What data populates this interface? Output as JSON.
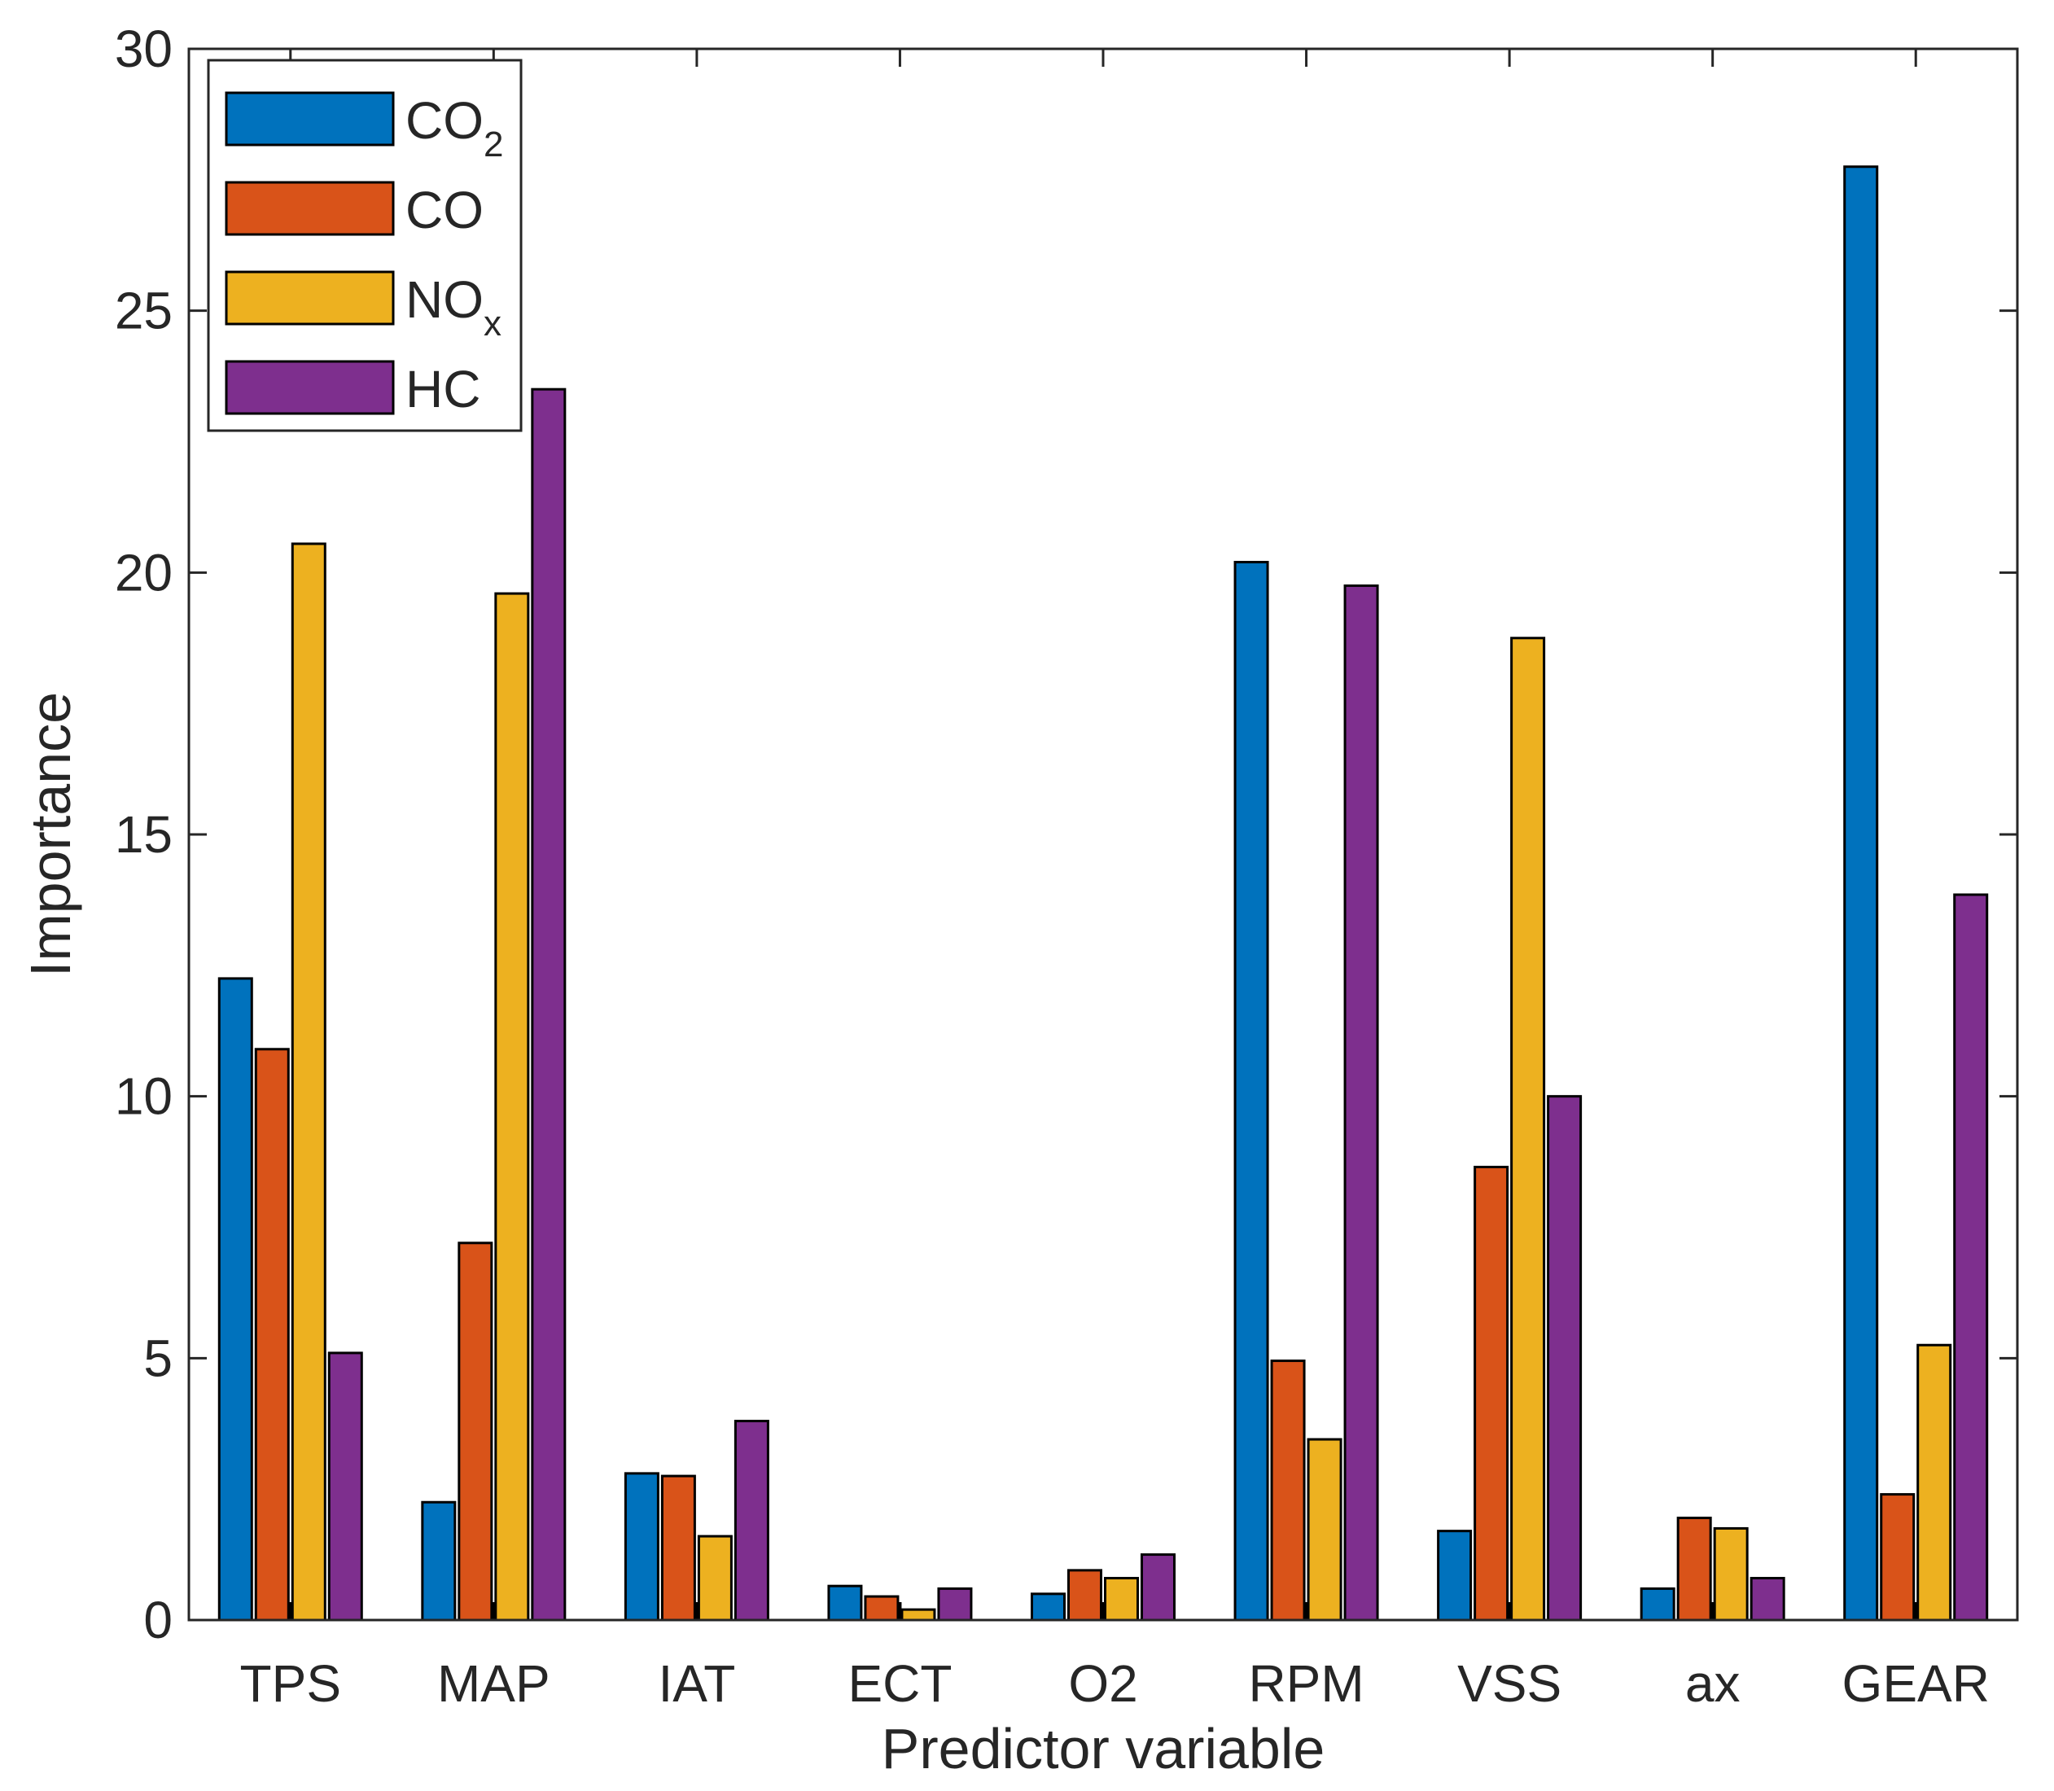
{
  "chart_data": {
    "type": "bar",
    "title": "",
    "xlabel": "Predictor variable",
    "ylabel": "Importance",
    "ylim": [
      0,
      30
    ],
    "yticks": [
      0,
      5,
      10,
      15,
      20,
      25,
      30
    ],
    "grid": false,
    "legend_position": "top-left",
    "categories": [
      "TPS",
      "MAP",
      "IAT",
      "ECT",
      "O2",
      "RPM",
      "VSS",
      "ax",
      "GEAR"
    ],
    "series": [
      {
        "name": "CO2",
        "label_main": "CO",
        "label_sub": "2",
        "color": "#0072bd",
        "values": [
          12.25,
          2.25,
          2.8,
          0.65,
          0.5,
          20.2,
          1.7,
          0.6,
          27.75
        ]
      },
      {
        "name": "CO",
        "label_main": "CO",
        "label_sub": "",
        "color": "#d95319",
        "values": [
          10.9,
          7.2,
          2.75,
          0.45,
          0.95,
          4.95,
          8.65,
          1.95,
          2.4
        ]
      },
      {
        "name": "NOx",
        "label_main": "NO",
        "label_sub": "x",
        "color": "#edb120",
        "values": [
          20.55,
          19.6,
          1.6,
          0.2,
          0.8,
          3.45,
          18.75,
          1.75,
          5.25
        ]
      },
      {
        "name": "HC",
        "label_main": "HC",
        "label_sub": "",
        "color": "#7e2f8e",
        "values": [
          5.1,
          23.5,
          3.8,
          0.6,
          1.25,
          19.75,
          10.0,
          0.8,
          13.85
        ]
      }
    ]
  }
}
